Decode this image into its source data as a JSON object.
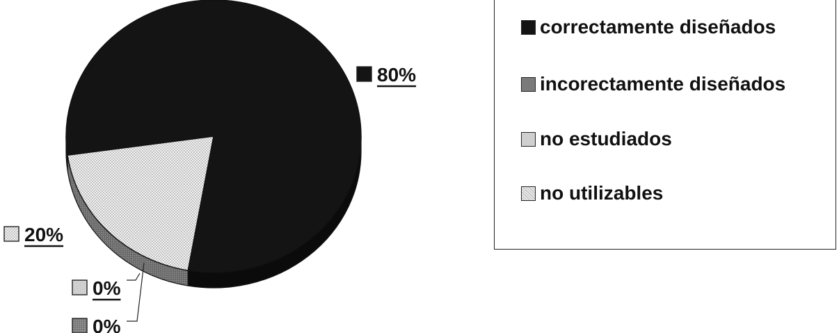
{
  "chart_data": {
    "type": "pie",
    "title": "",
    "categories": [
      "correctamente diseñados",
      "incorectamente diseñados",
      "no estudiados",
      "no utilizables"
    ],
    "values": [
      80,
      0,
      0,
      20
    ],
    "data_labels": [
      "80%",
      "0%",
      "0%",
      "20%"
    ],
    "legend_placement": "right",
    "colors": [
      "#141414",
      "#7a7a7a",
      "#cfcfcf",
      "#e2e2e2"
    ]
  }
}
